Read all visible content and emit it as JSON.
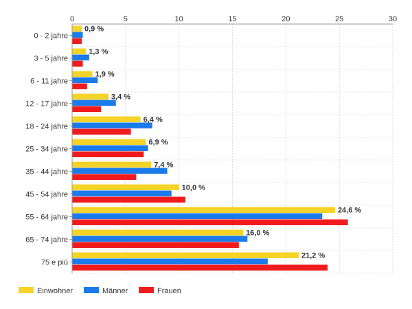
{
  "chart_data": {
    "type": "bar",
    "orientation": "horizontal",
    "title": "",
    "xlabel": "",
    "ylabel": "",
    "xlim": [
      0,
      30
    ],
    "x_ticks": [
      0,
      5,
      10,
      15,
      20,
      25,
      30
    ],
    "grid": true,
    "legend_position": "bottom-left",
    "categories": [
      "0 - 2 jahre",
      "3 - 5 jahre",
      "6 - 11 jahre",
      "12 - 17 jahre",
      "18 - 24 jahre",
      "25 - 34 jahre",
      "35 - 44 jahre",
      "45 - 54 jahre",
      "55 - 64 jahre",
      "65 - 74 jahre",
      "75 e più"
    ],
    "series": [
      {
        "name": "Einwohner",
        "color": "#f5d327",
        "values": [
          0.9,
          1.3,
          1.9,
          3.4,
          6.4,
          6.9,
          7.4,
          10.0,
          24.6,
          16.0,
          21.2
        ]
      },
      {
        "name": "Männer",
        "color": "#1c7bea",
        "values": [
          1.0,
          1.6,
          2.4,
          4.1,
          7.5,
          7.1,
          8.9,
          9.3,
          23.4,
          16.4,
          18.3
        ]
      },
      {
        "name": "Frauen",
        "color": "#f11b1e",
        "values": [
          0.9,
          1.0,
          1.4,
          2.7,
          5.5,
          6.7,
          6.0,
          10.6,
          25.8,
          15.6,
          23.9
        ]
      }
    ],
    "data_labels": [
      "0,9 %",
      "1,3 %",
      "1,9 %",
      "3,4 %",
      "6,4 %",
      "6,9 %",
      "7,4 %",
      "10,0 %",
      "24,6 %",
      "16,0 %",
      "21,2 %"
    ]
  }
}
